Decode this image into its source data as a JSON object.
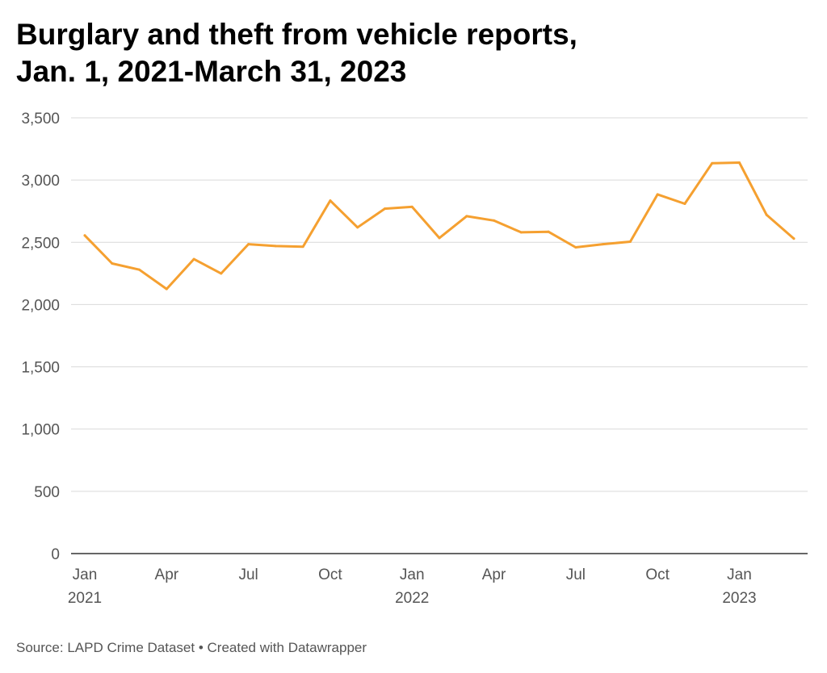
{
  "title_line1": "Burglary and theft from vehicle reports,",
  "title_line2": "Jan. 1, 2021-March 31, 2023",
  "footer": {
    "source_label": "Source:",
    "source": "LAPD Crime Dataset",
    "separator": "•",
    "credit": "Created with Datawrapper"
  },
  "colors": {
    "line": "#f5a030",
    "grid": "#d9d9d9",
    "axis": "#333333",
    "text": "#555555"
  },
  "chart_data": {
    "type": "line",
    "title": "Burglary and theft from vehicle reports, Jan. 1, 2021-March 31, 2023",
    "xlabel": "",
    "ylabel": "",
    "ylim": [
      0,
      3500
    ],
    "yticks": [
      0,
      500,
      1000,
      1500,
      2000,
      2500,
      3000,
      3500
    ],
    "ytick_labels": [
      "0",
      "500",
      "1,000",
      "1,500",
      "2,000",
      "2,500",
      "3,000",
      "3,500"
    ],
    "xticks": [
      {
        "month": "2021-01",
        "label": "Jan",
        "year": "2021"
      },
      {
        "month": "2021-04",
        "label": "Apr",
        "year": ""
      },
      {
        "month": "2021-07",
        "label": "Jul",
        "year": ""
      },
      {
        "month": "2021-10",
        "label": "Oct",
        "year": ""
      },
      {
        "month": "2022-01",
        "label": "Jan",
        "year": "2022"
      },
      {
        "month": "2022-04",
        "label": "Apr",
        "year": ""
      },
      {
        "month": "2022-07",
        "label": "Jul",
        "year": ""
      },
      {
        "month": "2022-10",
        "label": "Oct",
        "year": ""
      },
      {
        "month": "2023-01",
        "label": "Jan",
        "year": "2023"
      }
    ],
    "grid": true,
    "x": [
      "2021-01",
      "2021-02",
      "2021-03",
      "2021-04",
      "2021-05",
      "2021-06",
      "2021-07",
      "2021-08",
      "2021-09",
      "2021-10",
      "2021-11",
      "2021-12",
      "2022-01",
      "2022-02",
      "2022-03",
      "2022-04",
      "2022-05",
      "2022-06",
      "2022-07",
      "2022-08",
      "2022-09",
      "2022-10",
      "2022-11",
      "2022-12",
      "2023-01",
      "2023-02",
      "2023-03"
    ],
    "series": [
      {
        "values": [
          2555,
          2330,
          2280,
          2125,
          2365,
          2250,
          2485,
          2470,
          2465,
          2835,
          2620,
          2770,
          2785,
          2535,
          2710,
          2675,
          2580,
          2585,
          2460,
          2485,
          2505,
          2885,
          2810,
          3135,
          3140,
          2720,
          2530
        ]
      }
    ]
  }
}
